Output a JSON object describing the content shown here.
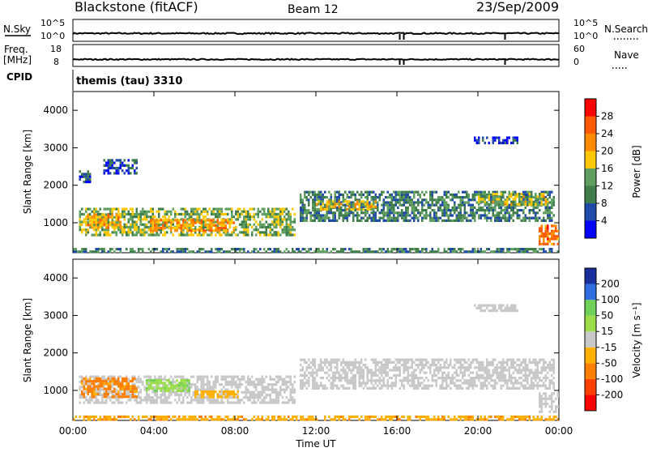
{
  "header": {
    "station": "Blackstone (fitACF)",
    "beam": "Beam 12",
    "date": "23/Sep/2009"
  },
  "strips": {
    "nsky_label": "N.Sky",
    "nsky_ticks": [
      "10^5",
      "10^0"
    ],
    "nsearch_label": "N.Search",
    "nsearch_ticks": [
      "10^5",
      "10^0"
    ],
    "freq_label": "Freq.",
    "freq_unit": "[MHz]",
    "freq_ticks": [
      "18",
      "8"
    ],
    "nave_label": "Nave",
    "nave_ticks": [
      "60",
      "0"
    ],
    "cpid_label": "CPID",
    "cpid_value": "themis (tau) 3310"
  },
  "colors": {
    "power_scale": [
      "#0000ff",
      "#1f4aa8",
      "#3f7d4a",
      "#5f9f5f",
      "#ffc800",
      "#ff8c00",
      "#ff5a00",
      "#ff0000"
    ],
    "velocity_scale": [
      "#1a2f9e",
      "#2f6de0",
      "#6fd05a",
      "#9bdd4a",
      "#c8c8c8",
      "#ffb000",
      "#ff8000",
      "#ff4000",
      "#ff0000"
    ],
    "ground_scatter": "#b8b8b8"
  },
  "chart_data": [
    {
      "type": "heatmap",
      "panel": "power",
      "ylabel": "Slant Range [km]",
      "yticks": [
        "1000",
        "2000",
        "3000",
        "4000"
      ],
      "ylim": [
        200,
        4500
      ],
      "xlim_hours": [
        0,
        24
      ],
      "colorbar_label": "Power [dB]",
      "colorbar_ticks": [
        "4",
        "8",
        "12",
        "16",
        "20",
        "24",
        "28"
      ],
      "regions": [
        {
          "t0": 0.3,
          "t1": 11.0,
          "r0": 700,
          "r1": 1400,
          "value_db": 14
        },
        {
          "t0": 0.6,
          "t1": 2.5,
          "r0": 850,
          "r1": 1250,
          "value_db": 20
        },
        {
          "t0": 3.8,
          "t1": 8.0,
          "r0": 800,
          "r1": 1100,
          "value_db": 22
        },
        {
          "t0": 0.3,
          "t1": 0.9,
          "r0": 2100,
          "r1": 2400,
          "value_db": 6
        },
        {
          "t0": 1.5,
          "t1": 3.2,
          "r0": 2300,
          "r1": 2700,
          "value_db": 6
        },
        {
          "t0": 11.2,
          "t1": 23.8,
          "r0": 1050,
          "r1": 1850,
          "value_db": 10
        },
        {
          "t0": 12.0,
          "t1": 15.0,
          "r0": 1350,
          "r1": 1600,
          "value_db": 18
        },
        {
          "t0": 20.0,
          "t1": 23.5,
          "r0": 1500,
          "r1": 1800,
          "value_db": 16
        },
        {
          "t0": 19.8,
          "t1": 22.0,
          "r0": 3100,
          "r1": 3300,
          "value_db": 5
        },
        {
          "t0": 23.0,
          "t1": 24.0,
          "r0": 450,
          "r1": 950,
          "value_db": 24
        },
        {
          "t0": 0.0,
          "t1": 24.0,
          "r0": 200,
          "r1": 330,
          "value_db": 10
        }
      ]
    },
    {
      "type": "heatmap",
      "panel": "velocity",
      "ylabel": "Slant Range [km]",
      "yticks": [
        "1000",
        "2000",
        "3000",
        "4000"
      ],
      "ylim": [
        200,
        4500
      ],
      "xlim_hours": [
        0,
        24
      ],
      "xticks": [
        "00:00",
        "04:00",
        "08:00",
        "12:00",
        "16:00",
        "20:00",
        "00:00"
      ],
      "xlabel": "Time UT",
      "colorbar_label": "Velocity [m s⁻¹]",
      "colorbar_ticks": [
        "-200",
        "-100",
        "-50",
        "-15",
        "15",
        "50",
        "100",
        "200"
      ],
      "regions": [
        {
          "t0": 0.3,
          "t1": 11.0,
          "r0": 700,
          "r1": 1400,
          "value": 0
        },
        {
          "t0": 0.4,
          "t1": 3.2,
          "r0": 800,
          "r1": 1350,
          "value": -60
        },
        {
          "t0": 3.6,
          "t1": 5.8,
          "r0": 1000,
          "r1": 1300,
          "value": 40
        },
        {
          "t0": 6.0,
          "t1": 8.2,
          "r0": 800,
          "r1": 1000,
          "value": -30
        },
        {
          "t0": 11.2,
          "t1": 23.8,
          "r0": 1050,
          "r1": 1850,
          "value": 0
        },
        {
          "t0": 0.0,
          "t1": 24.0,
          "r0": 200,
          "r1": 330,
          "value": -40
        },
        {
          "t0": 19.8,
          "t1": 22.0,
          "r0": 3100,
          "r1": 3300,
          "value": 0
        },
        {
          "t0": 23.0,
          "t1": 24.0,
          "r0": 450,
          "r1": 950,
          "value": 0
        }
      ]
    }
  ]
}
